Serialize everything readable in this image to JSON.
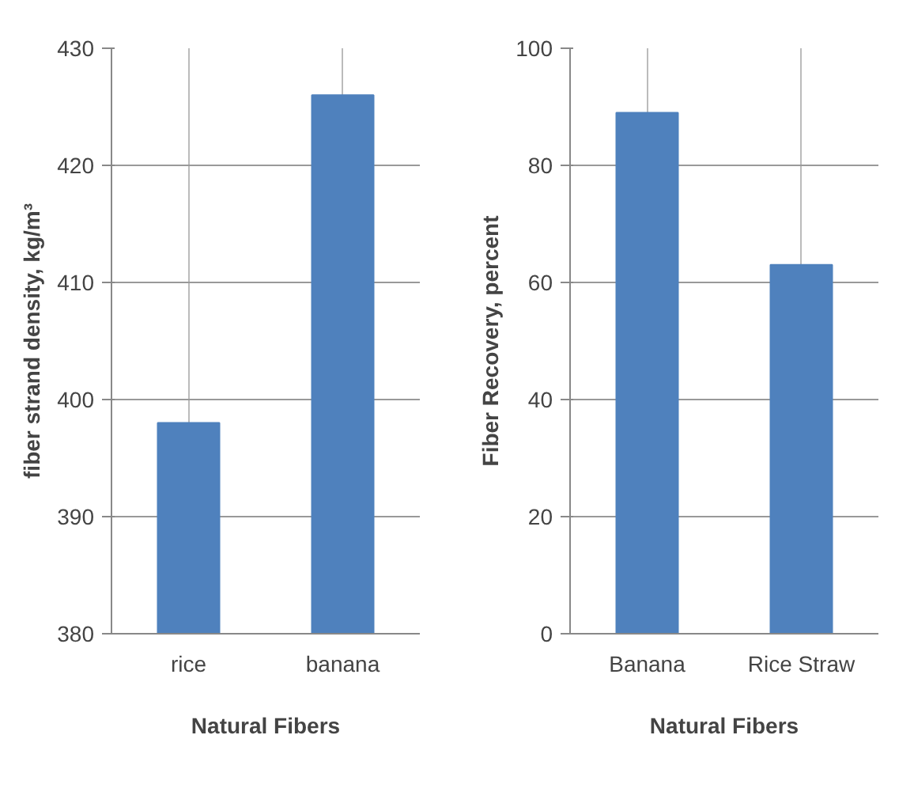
{
  "chart_data": [
    {
      "type": "bar",
      "categories": [
        "rice",
        "banana"
      ],
      "values": [
        398,
        426
      ],
      "color": "#4f81bd",
      "xlabel": "Natural Fibers",
      "ylabel": "fiber strand density, kg/m³",
      "ylim": [
        380,
        430
      ],
      "yticks": [
        380,
        390,
        400,
        410,
        420,
        430
      ],
      "grid": true
    },
    {
      "type": "bar",
      "categories": [
        "Banana",
        "Rice Straw"
      ],
      "values": [
        89,
        63
      ],
      "color": "#4f81bd",
      "xlabel": "Natural Fibers",
      "ylabel": "Fiber Recovery, percent",
      "ylim": [
        0,
        100
      ],
      "yticks": [
        0,
        20,
        40,
        60,
        80,
        100
      ],
      "grid": true
    }
  ]
}
